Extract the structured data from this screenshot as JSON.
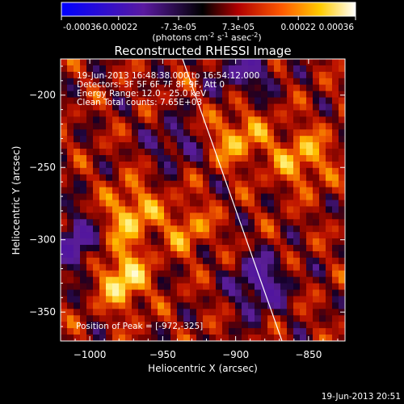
{
  "colorbar": {
    "ticks": [
      "-0.00036",
      "-0.00022",
      "-7.3e-05",
      "7.3e-05",
      "0.00022",
      "0.00036"
    ],
    "units_main": "(photons cm",
    "units_exp1": "-2",
    "units_mid": " s",
    "units_exp2": "-1",
    "units_tail": " asec",
    "units_exp3": "-2",
    "units_close": ")"
  },
  "plot": {
    "title": "Reconstructed RHESSI Image",
    "info_lines": [
      "19-Jun-2013 16:48:38.000 to 16:54:12.000",
      "Detectors: 3F 5F 6F 7F 8F 9F, Att 0",
      "Energy Range: 12.0 - 25.0 keV",
      "Clean    Total counts: 7.65E+03"
    ],
    "peak_label": "Position of Peak = [-972,-325]",
    "footer_date": "19-Jun-2013 20:51"
  },
  "chart_data": {
    "type": "heatmap",
    "title": "Reconstructed RHESSI Image",
    "xlabel": "Heliocentric X (arcsec)",
    "ylabel": "Heliocentric Y (arcsec)",
    "xlim": [
      -1020,
      -825
    ],
    "ylim": [
      -370,
      -175
    ],
    "x_ticks": [
      -1000,
      -950,
      -900,
      -850
    ],
    "y_ticks": [
      -350,
      -300,
      -250,
      -200
    ],
    "colorbar_range": [
      -0.00036,
      0.00036
    ],
    "peak": [
      -972,
      -325
    ],
    "grid": false
  }
}
